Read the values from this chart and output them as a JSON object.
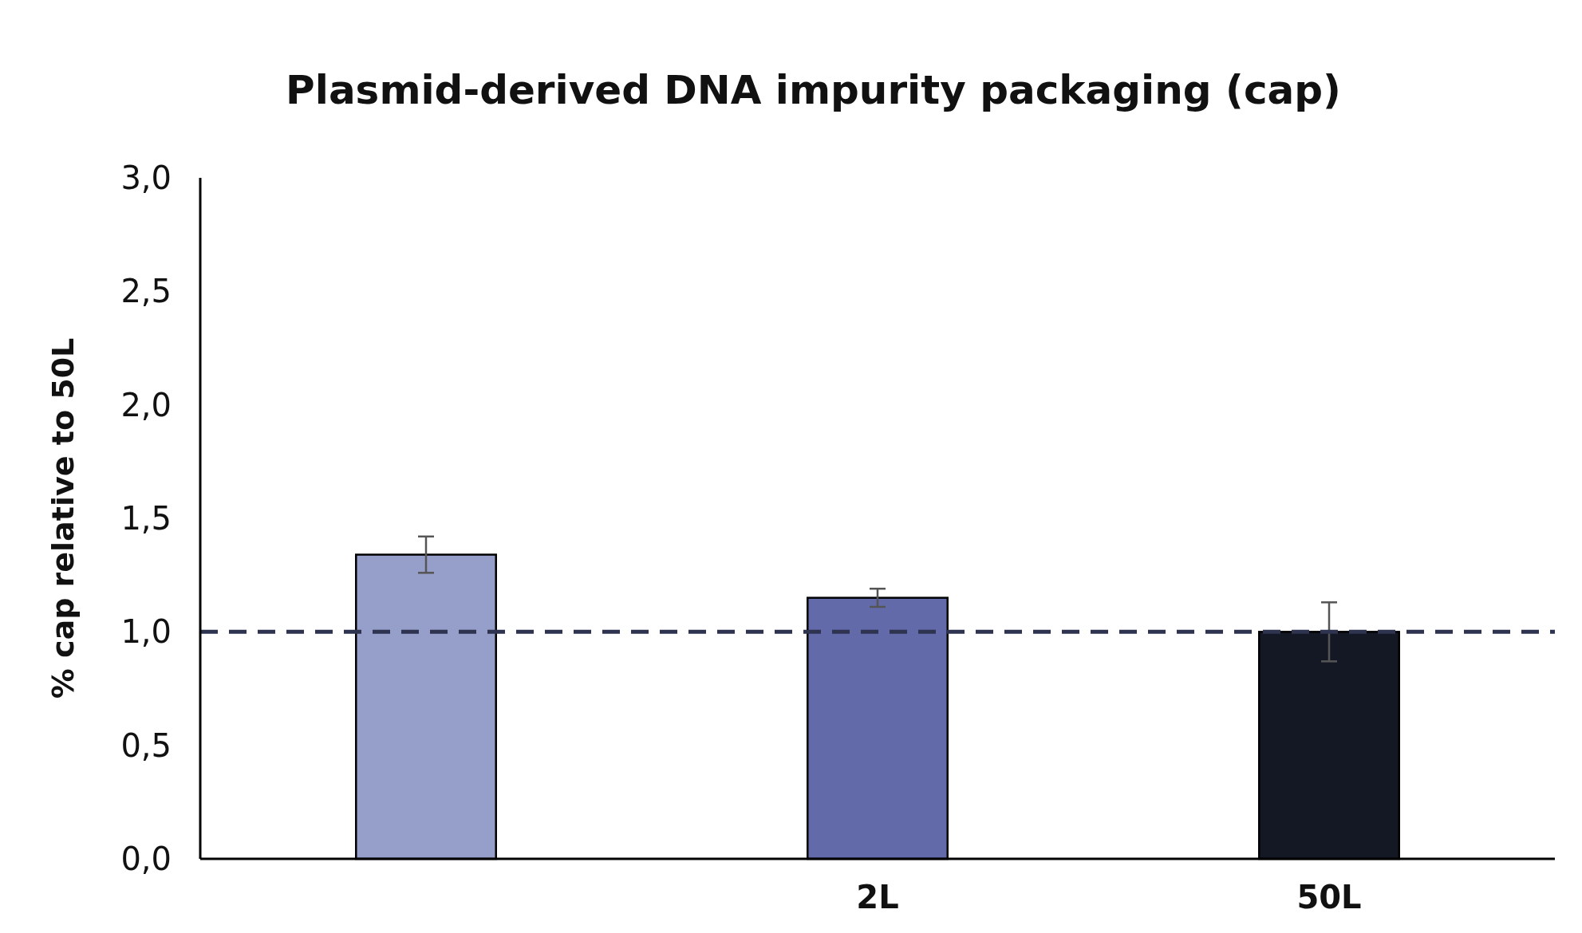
{
  "chart_data": {
    "type": "bar",
    "title": "Plasmid-derived DNA impurity packaging (cap)",
    "ylabel": "% cap relative to 50L",
    "categories": [
      null,
      "2L",
      "50L"
    ],
    "values": [
      1.34,
      1.15,
      1.0
    ],
    "colors": [
      "#969fca",
      "#626aaa",
      "#141824"
    ],
    "errors": [
      0.08,
      0.04,
      0.13
    ],
    "ylim": [
      0,
      3
    ],
    "yticks": [
      {
        "value": 0,
        "label": "0,0"
      },
      {
        "value": 0.5,
        "label": "0,5"
      },
      {
        "value": 1,
        "label": "1,0"
      },
      {
        "value": 1.5,
        "label": "1,5"
      },
      {
        "value": 2,
        "label": "2,0"
      },
      {
        "value": 2.5,
        "label": "2,5"
      },
      {
        "value": 3,
        "label": "3,0"
      }
    ],
    "ref_lines": [
      {
        "axis": "y",
        "value": 1,
        "color": "#2e3350",
        "line_style": "dashed"
      }
    ],
    "grid": false
  }
}
